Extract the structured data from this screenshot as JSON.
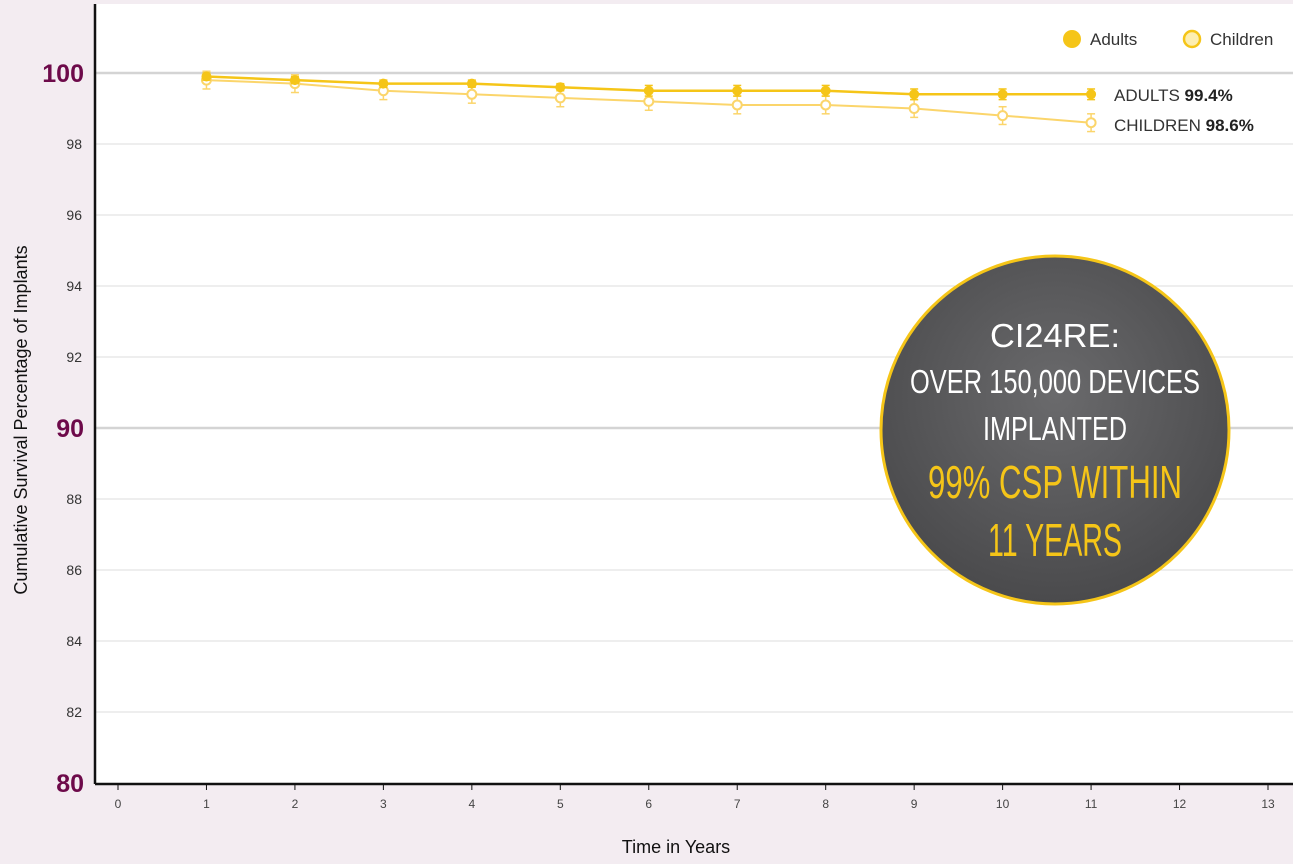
{
  "chart_data": {
    "type": "line",
    "xlabel": "Time in Years",
    "ylabel": "Cumulative Survival Percentage of Implants",
    "xlim": [
      0,
      13
    ],
    "ylim": [
      80,
      102
    ],
    "x_ticks": [
      "0",
      "1",
      "2",
      "3",
      "4",
      "5",
      "6",
      "7",
      "8",
      "9",
      "10",
      "11",
      "12",
      "13"
    ],
    "y_ticks_minor": [
      "82",
      "84",
      "86",
      "88",
      "92",
      "94",
      "96",
      "98"
    ],
    "y_ticks_major": [
      "80",
      "90",
      "100"
    ],
    "x": [
      1,
      2,
      3,
      4,
      5,
      6,
      7,
      8,
      9,
      10,
      11
    ],
    "series": [
      {
        "name": "Adults",
        "values": [
          99.9,
          99.8,
          99.7,
          99.7,
          99.6,
          99.5,
          99.5,
          99.5,
          99.4,
          99.4,
          99.4
        ],
        "error": [
          0.1,
          0.1,
          0.1,
          0.1,
          0.1,
          0.15,
          0.15,
          0.15,
          0.15,
          0.15,
          0.15
        ],
        "color": "#f5c518",
        "marker": "filled-circle",
        "end_label": "ADULTS",
        "end_value": "99.4%"
      },
      {
        "name": "Children",
        "values": [
          99.8,
          99.7,
          99.5,
          99.4,
          99.3,
          99.2,
          99.1,
          99.1,
          99.0,
          98.8,
          98.6
        ],
        "error": [
          0.25,
          0.25,
          0.25,
          0.25,
          0.25,
          0.25,
          0.25,
          0.25,
          0.25,
          0.25,
          0.25
        ],
        "color": "#fbd56b",
        "marker": "open-circle",
        "end_label": "CHILDREN",
        "end_value": "98.6%"
      }
    ],
    "legend": [
      "Adults",
      "Children"
    ],
    "legend_position": "top-right",
    "grid": true
  },
  "callout": {
    "line1": "CI24RE:",
    "line2": "OVER 150,000 DEVICES",
    "line3": "IMPLANTED",
    "line4": "99% CSP WITHIN",
    "line5": "11 YEARS",
    "fill_color": "#58585a",
    "border_color": "#f5c518",
    "highlight_color": "#f5c518"
  },
  "colors": {
    "background": "#f3ecf1",
    "plot_background": "#ffffff",
    "major_tick_color": "#6d0a4a"
  }
}
